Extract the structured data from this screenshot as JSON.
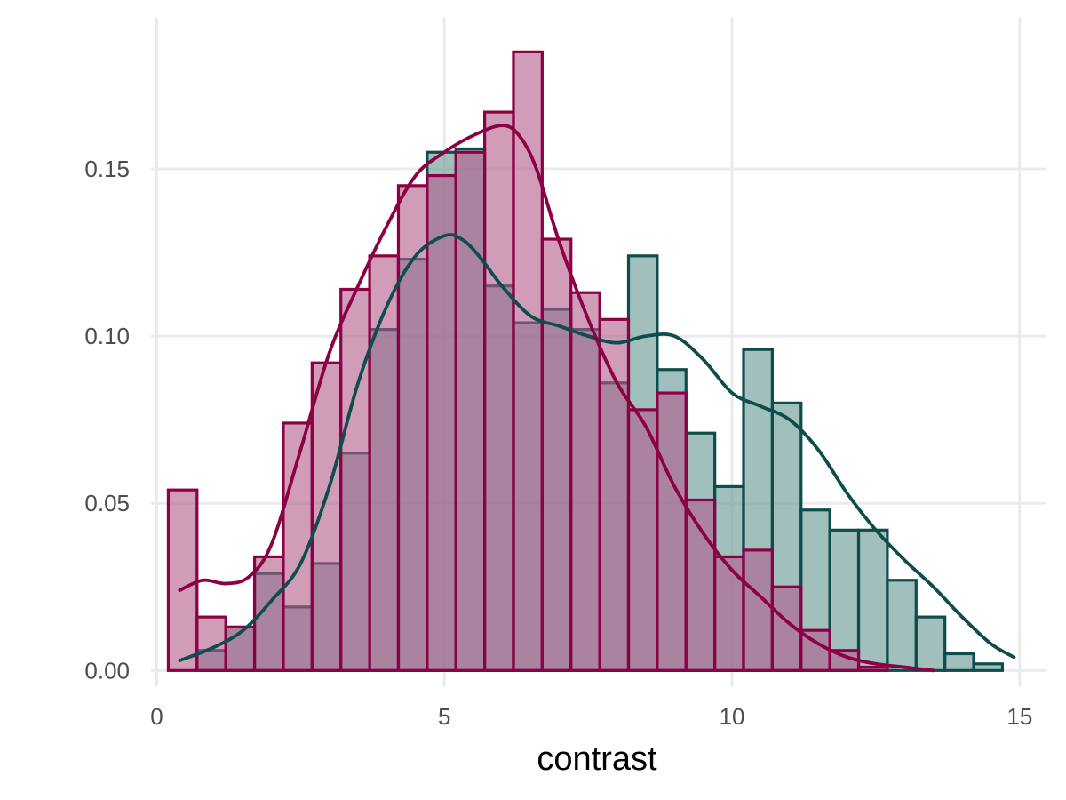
{
  "chart_data": {
    "type": "histogram",
    "title": "",
    "xlabel": "contrast",
    "ylabel": "",
    "xlim": [
      -0.1,
      15.45
    ],
    "ylim": [
      -0.0047,
      0.1952
    ],
    "x_ticks": [
      {
        "value": 0,
        "label": "0"
      },
      {
        "value": 5,
        "label": "5"
      },
      {
        "value": 10,
        "label": "10"
      },
      {
        "value": 15,
        "label": "15"
      }
    ],
    "y_ticks": [
      {
        "value": 0.0,
        "label": "0.00"
      },
      {
        "value": 0.05,
        "label": "0.05"
      },
      {
        "value": 0.1,
        "label": "0.10"
      },
      {
        "value": 0.15,
        "label": "0.15"
      }
    ],
    "x_minor_gridlines": [
      2.5,
      7.5,
      12.5
    ],
    "y_minor_gridlines": [
      0.025,
      0.075,
      0.125,
      0.175
    ],
    "grid": true,
    "legend": "none",
    "bin_width": 0.5,
    "series": [
      {
        "color_fill": "#6e9e9a",
        "color_outline": "#0d4d4c",
        "fill_opacity": 0.65,
        "bin_start": 0.7,
        "values": [
          0.006,
          0.013,
          0.029,
          0.019,
          0.032,
          0.065,
          0.102,
          0.123,
          0.155,
          0.156,
          0.115,
          0.104,
          0.108,
          0.102,
          0.086,
          0.124,
          0.09,
          0.071,
          0.055,
          0.096,
          0.08,
          0.048,
          0.042,
          0.042,
          0.027,
          0.016,
          0.005,
          0.002
        ],
        "density_x": [
          0.4,
          1.0,
          1.5,
          2.0,
          2.5,
          3.0,
          3.5,
          4.0,
          4.5,
          5.0,
          5.3,
          5.6,
          6.0,
          6.5,
          7.0,
          7.5,
          8.0,
          8.5,
          9.0,
          9.5,
          10.0,
          10.5,
          11.0,
          11.5,
          12.0,
          12.5,
          13.0,
          13.5,
          14.0,
          14.5,
          14.9
        ],
        "density_y": [
          0.003,
          0.007,
          0.012,
          0.021,
          0.032,
          0.055,
          0.086,
          0.109,
          0.124,
          0.13,
          0.129,
          0.124,
          0.115,
          0.106,
          0.103,
          0.1,
          0.098,
          0.1,
          0.1,
          0.093,
          0.083,
          0.079,
          0.075,
          0.066,
          0.053,
          0.042,
          0.033,
          0.025,
          0.016,
          0.008,
          0.004
        ],
        "density_color": "#0d4d4c"
      },
      {
        "color_fill": "#b05a88",
        "color_outline": "#8c0045",
        "fill_opacity": 0.6,
        "bin_start": 0.2,
        "values": [
          0.054,
          0.016,
          0.013,
          0.034,
          0.074,
          0.092,
          0.114,
          0.124,
          0.145,
          0.148,
          0.155,
          0.167,
          0.185,
          0.129,
          0.113,
          0.105,
          0.078,
          0.083,
          0.051,
          0.034,
          0.036,
          0.025,
          0.012,
          0.006,
          0.001,
          0.0,
          0.0,
          0.0,
          0.0,
          0.0,
          0.0
        ],
        "density_x": [
          0.4,
          0.8,
          1.2,
          1.6,
          2.0,
          2.5,
          3.0,
          3.5,
          4.0,
          4.5,
          5.0,
          5.5,
          6.0,
          6.3,
          6.6,
          7.0,
          7.5,
          8.0,
          8.5,
          9.0,
          9.5,
          10.0,
          10.5,
          11.0,
          11.5,
          12.0,
          12.5,
          13.0,
          13.5
        ],
        "density_y": [
          0.024,
          0.027,
          0.026,
          0.028,
          0.038,
          0.066,
          0.095,
          0.115,
          0.133,
          0.148,
          0.155,
          0.16,
          0.163,
          0.16,
          0.15,
          0.128,
          0.105,
          0.086,
          0.073,
          0.055,
          0.041,
          0.03,
          0.022,
          0.014,
          0.008,
          0.004,
          0.002,
          0.001,
          0.0
        ],
        "density_color": "#8c0045"
      }
    ]
  }
}
